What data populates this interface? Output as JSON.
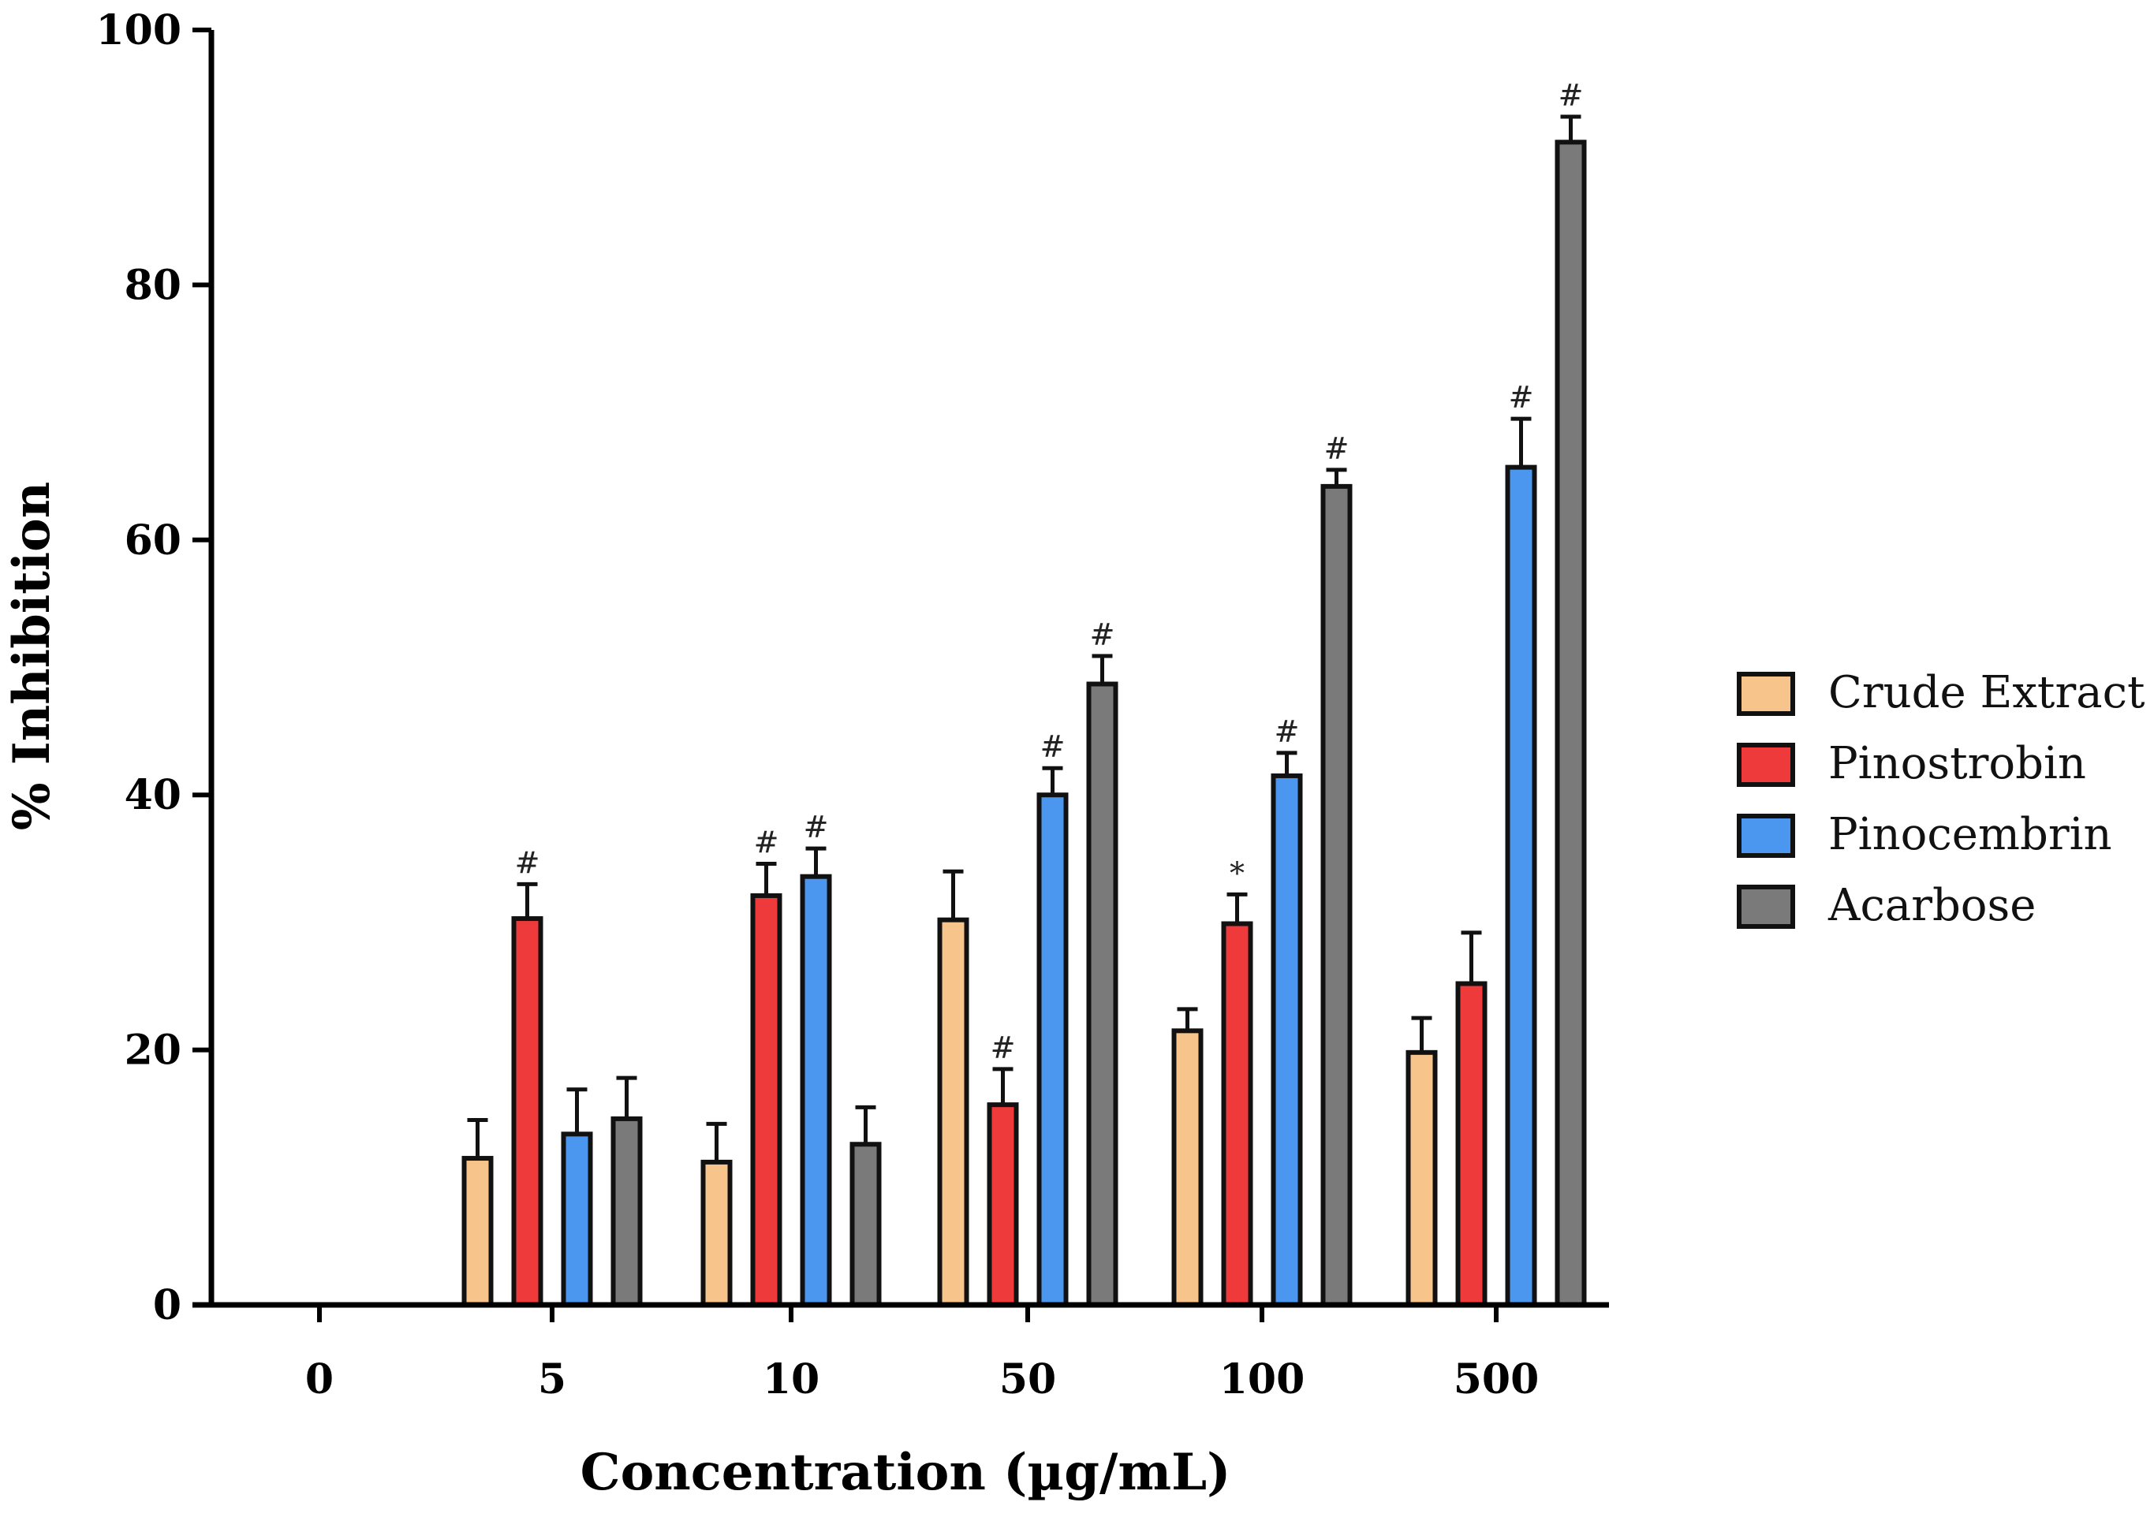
{
  "chart_data": {
    "type": "bar",
    "title": "",
    "xlabel": "Concentration (µg/mL)",
    "ylabel": "% Inhibition",
    "ylim": [
      0,
      100
    ],
    "yticks": [
      "0",
      "20",
      "40",
      "60",
      "80",
      "100"
    ],
    "categories": [
      "0",
      "5",
      "10",
      "50",
      "100",
      "500"
    ],
    "legend_position": "right",
    "series": [
      {
        "name": "Crude Extract",
        "color": "#f7c48b",
        "values": [
          0,
          11.5,
          11.2,
          30.2,
          21.5,
          19.8
        ],
        "errors": [
          0,
          3.0,
          3.0,
          3.8,
          1.7,
          2.7
        ],
        "annotations": [
          "",
          "",
          "",
          "",
          "",
          ""
        ]
      },
      {
        "name": "Pinostrobin",
        "color": "#ee3a3a",
        "values": [
          0,
          30.3,
          32.1,
          15.7,
          29.9,
          25.2
        ],
        "errors": [
          0,
          2.7,
          2.5,
          2.8,
          2.3,
          4.0
        ],
        "annotations": [
          "",
          "#",
          "#",
          "#",
          "*",
          ""
        ]
      },
      {
        "name": "Pinocembrin",
        "color": "#4b97ef",
        "values": [
          0,
          13.4,
          33.6,
          40.0,
          41.5,
          65.7
        ],
        "errors": [
          0,
          3.5,
          2.2,
          2.1,
          1.8,
          3.8
        ],
        "annotations": [
          "",
          "",
          "#",
          "#",
          "#",
          "#"
        ]
      },
      {
        "name": "Acarbose",
        "color": "#7a7a7a",
        "values": [
          0,
          14.6,
          12.6,
          48.7,
          64.2,
          91.2
        ],
        "errors": [
          0,
          3.2,
          2.9,
          2.2,
          1.3,
          2.0
        ],
        "annotations": [
          "",
          "",
          "",
          "#",
          "#",
          "#"
        ]
      }
    ]
  }
}
